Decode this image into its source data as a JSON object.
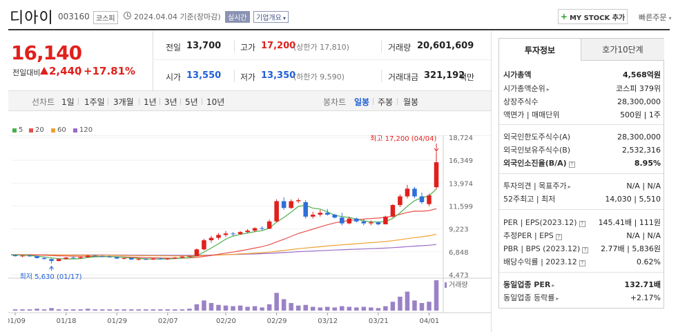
{
  "header": {
    "name": "디아이",
    "code": "003160",
    "market": "코스피",
    "date_text": "2024.04.04 기준(장마감)",
    "realtime": "실시간",
    "company_info": "기업개요",
    "mystock": "MY STOCK 추가",
    "quick_order": "빠른주문"
  },
  "price": {
    "current": "16,140",
    "change_label": "전일대비",
    "change_amount": "2,440",
    "change_sep": "|",
    "change_rate": "+17.81%"
  },
  "quote": {
    "prev_label": "전일",
    "prev": "13,700",
    "high_label": "고가",
    "high": "17,200",
    "upper_limit": "(상한가 17,810)",
    "volume_label": "거래량",
    "volume": "20,601,609",
    "open_label": "시가",
    "open": "13,550",
    "low_label": "저가",
    "low": "13,350",
    "lower_limit": "(하한가 9,590)",
    "amount_label": "거래대금",
    "amount": "321,192",
    "amount_unit": "백만"
  },
  "chart_tabs": {
    "line_label": "선차트",
    "line_tabs": [
      "1일",
      "1주일",
      "3개월",
      "1년",
      "3년",
      "5년",
      "10년"
    ],
    "candle_label": "봉차트",
    "candle_tabs": [
      "일봉",
      "주봉",
      "월봉"
    ],
    "active": "일봉"
  },
  "legend": [
    {
      "label": "5",
      "color": "#4cae4c"
    },
    {
      "label": "20",
      "color": "#e8504a"
    },
    {
      "label": "60",
      "color": "#f0a030"
    },
    {
      "label": "120",
      "color": "#9a6ac8"
    }
  ],
  "chart_data": {
    "type": "candlestick",
    "y_ticks": [
      "18,724",
      "16,349",
      "13,974",
      "11,599",
      "9,223",
      "6,848",
      "4,473"
    ],
    "y_range": [
      4473,
      18724
    ],
    "x_ticks": [
      "01/09",
      "01/18",
      "01/29",
      "02/07",
      "02/20",
      "02/29",
      "03/12",
      "03/21",
      "04/01"
    ],
    "high_annotation": "최고 17,200 (04/04)",
    "low_annotation": "최저 5,630 (01/17)",
    "volume_label": "거래량",
    "colors": {
      "up": "#e0201c",
      "down": "#2e6fd8",
      "volume": "#9b82c6"
    },
    "candles": [
      [
        6500,
        6550,
        6350,
        6400
      ],
      [
        6400,
        6500,
        6300,
        6450
      ],
      [
        6450,
        6550,
        6350,
        6400
      ],
      [
        6400,
        6420,
        6150,
        6200
      ],
      [
        6200,
        6300,
        6050,
        6100
      ],
      [
        6100,
        6150,
        5630,
        5900
      ],
      [
        5900,
        6150,
        5850,
        6100
      ],
      [
        6100,
        6300,
        6050,
        6250
      ],
      [
        6250,
        6400,
        6150,
        6200
      ],
      [
        6200,
        6350,
        6150,
        6300
      ],
      [
        6300,
        6500,
        6250,
        6450
      ],
      [
        6450,
        6550,
        6350,
        6400
      ],
      [
        6400,
        6500,
        6300,
        6350
      ],
      [
        6350,
        6450,
        6250,
        6300
      ],
      [
        6300,
        6350,
        6100,
        6150
      ],
      [
        6150,
        6250,
        6050,
        6200
      ],
      [
        6200,
        6250,
        6000,
        6050
      ],
      [
        6050,
        6150,
        5950,
        6100
      ],
      [
        6100,
        6200,
        6000,
        6050
      ],
      [
        6050,
        6200,
        6000,
        6150
      ],
      [
        6150,
        6250,
        6050,
        6100
      ],
      [
        6100,
        6200,
        6000,
        6150
      ],
      [
        6150,
        6300,
        6100,
        6250
      ],
      [
        6250,
        6400,
        6200,
        6350
      ],
      [
        6350,
        6450,
        6300,
        6400
      ],
      [
        6400,
        7200,
        6350,
        7100
      ],
      [
        7100,
        8200,
        7000,
        8050
      ],
      [
        8050,
        8500,
        7800,
        8300
      ],
      [
        8300,
        8800,
        8100,
        8600
      ],
      [
        8600,
        9000,
        8400,
        8750
      ],
      [
        8750,
        8900,
        8500,
        8700
      ],
      [
        8700,
        9000,
        8600,
        8900
      ],
      [
        8900,
        9200,
        8800,
        9050
      ],
      [
        9050,
        9400,
        8900,
        9300
      ],
      [
        9300,
        9500,
        9100,
        9250
      ],
      [
        9250,
        10200,
        9200,
        10000
      ],
      [
        10000,
        12300,
        9900,
        12100
      ],
      [
        12100,
        12500,
        11200,
        11400
      ],
      [
        11400,
        12300,
        11300,
        12100
      ],
      [
        12100,
        12400,
        11900,
        12200
      ],
      [
        12000,
        12200,
        10300,
        10500
      ],
      [
        10500,
        11000,
        10300,
        10700
      ],
      [
        10700,
        11200,
        10500,
        10900
      ],
      [
        10900,
        11300,
        10600,
        10700
      ],
      [
        10700,
        10800,
        10300,
        10400
      ],
      [
        10400,
        10900,
        9600,
        9800
      ],
      [
        9800,
        10500,
        9700,
        10300
      ],
      [
        10300,
        10400,
        9900,
        10000
      ],
      [
        10000,
        10200,
        9600,
        9800
      ],
      [
        9800,
        10100,
        9600,
        9900
      ],
      [
        9900,
        10000,
        9600,
        9700
      ],
      [
        9700,
        10600,
        9700,
        10500
      ],
      [
        10500,
        11800,
        10400,
        11700
      ],
      [
        11700,
        12800,
        11500,
        12600
      ],
      [
        12600,
        13800,
        12400,
        13400
      ],
      [
        13400,
        13600,
        12400,
        12600
      ],
      [
        12600,
        13000,
        11800,
        12000
      ],
      [
        11800,
        12900,
        11600,
        12700
      ],
      [
        13550,
        17200,
        13350,
        16140
      ]
    ],
    "volumes": [
      2,
      2,
      2,
      3,
      2,
      4,
      2,
      2,
      2,
      2,
      3,
      2,
      2,
      2,
      2,
      2,
      2,
      2,
      2,
      2,
      2,
      2,
      2,
      2,
      3,
      10,
      16,
      12,
      9,
      8,
      7,
      8,
      6,
      7,
      5,
      10,
      28,
      18,
      12,
      8,
      9,
      6,
      5,
      6,
      5,
      7,
      6,
      5,
      6,
      5,
      4,
      7,
      14,
      22,
      30,
      16,
      12,
      14,
      48
    ]
  },
  "panel": {
    "tab_invest": "투자정보",
    "tab_hoga": "호가10단계",
    "market_cap_label": "시가총액",
    "market_cap": "4,568억원",
    "market_cap_rank_label": "시가총액순위",
    "market_cap_rank": "코스피 379위",
    "shares_label": "상장주식수",
    "shares": "28,300,000",
    "face_label": "액면가 | 매매단위",
    "face": "500원 | 1주",
    "foreign_limit_label": "외국인한도주식수(A)",
    "foreign_limit": "28,300,000",
    "foreign_hold_label": "외국인보유주식수(B)",
    "foreign_hold": "2,532,316",
    "foreign_rate_label": "외국인소진율(B/A)",
    "foreign_rate": "8.95%",
    "opinion_label": "투자의견 | 목표주가",
    "opinion": "N/A | N/A",
    "week52_label": "52주최고 | 최저",
    "week52": "14,030 | 5,510",
    "per_label": "PER | EPS(2023.12)",
    "per": "145.41배 | 111원",
    "est_per_label": "추정PER | EPS",
    "est_per": "N/A | N/A",
    "pbr_label": "PBR | BPS (2023.12)",
    "pbr": "2.77배 | 5,836원",
    "div_label": "배당수익률 | 2023.12",
    "div": "0.62%",
    "ind_per_label": "동일업종 PER",
    "ind_per": "132.71배",
    "ind_rate_label": "동일업종 등락률",
    "ind_rate": "+2.17%"
  }
}
